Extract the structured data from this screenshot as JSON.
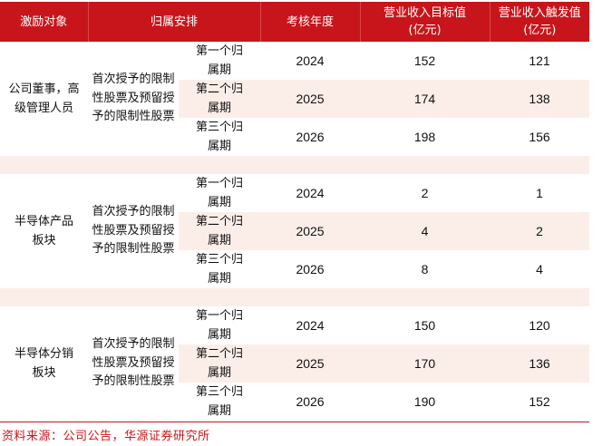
{
  "headers": [
    "激励对象",
    "归属安排",
    "考核年度",
    "营业收入目标值\n(亿元)",
    "营业收入触发值\n(亿元)"
  ],
  "groups": [
    {
      "target": "公司董事，高级管理人员",
      "award": "首次授予的限制性股票及预留授予的限制性股票",
      "rows": [
        {
          "period": "第一个归属期",
          "year": "2024",
          "goal": "152",
          "trigger": "121"
        },
        {
          "period": "第二个归属期",
          "year": "2025",
          "goal": "174",
          "trigger": "138"
        },
        {
          "period": "第三个归属期",
          "year": "2026",
          "goal": "198",
          "trigger": "156"
        }
      ]
    },
    {
      "target": "半导体产品板块",
      "award": "首次授予的限制性股票及预留授予的限制性股票",
      "rows": [
        {
          "period": "第一个归属期",
          "year": "2024",
          "goal": "2",
          "trigger": "1"
        },
        {
          "period": "第二个归属期",
          "year": "2025",
          "goal": "4",
          "trigger": "2"
        },
        {
          "period": "第三个归属期",
          "year": "2026",
          "goal": "8",
          "trigger": "4"
        }
      ]
    },
    {
      "target": "半导体分销板块",
      "award": "首次授予的限制性股票及预留授予的限制性股票",
      "rows": [
        {
          "period": "第一个归属期",
          "year": "2024",
          "goal": "150",
          "trigger": "120"
        },
        {
          "period": "第二个归属期",
          "year": "2025",
          "goal": "170",
          "trigger": "136"
        },
        {
          "period": "第三个归属期",
          "year": "2026",
          "goal": "190",
          "trigger": "152"
        }
      ]
    }
  ],
  "source": "资料来源：公司公告，华源证券研究所",
  "colors": {
    "accent": "#c8151b",
    "shade": "#fbeee8"
  }
}
